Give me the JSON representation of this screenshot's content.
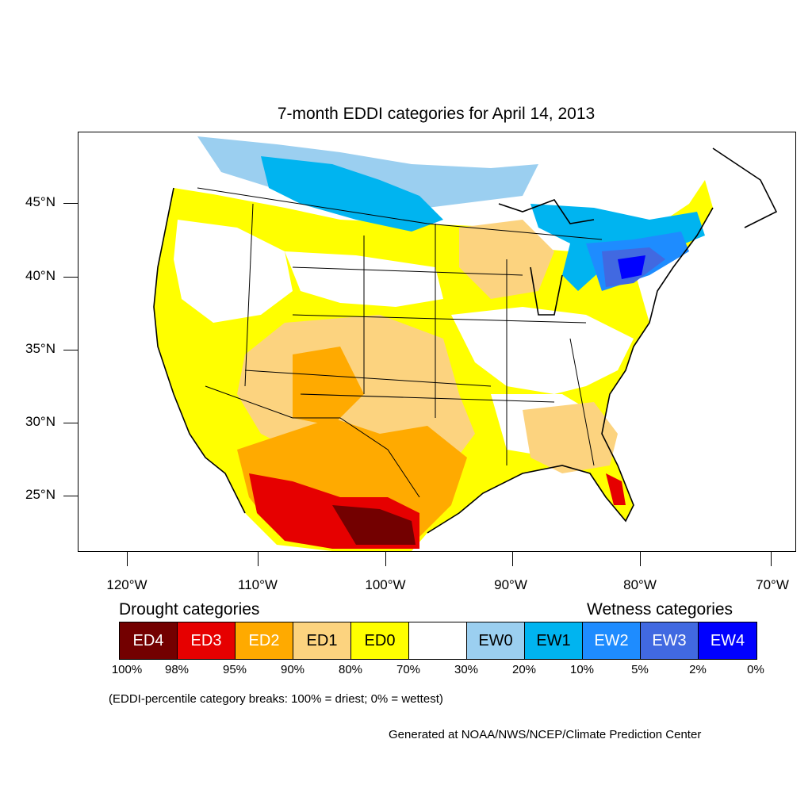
{
  "title": "7-month EDDI categories for April 14, 2013",
  "map": {
    "lat_labels": [
      "45°N",
      "40°N",
      "35°N",
      "30°N",
      "25°N"
    ],
    "lon_labels": [
      "120°W",
      "110°W",
      "100°W",
      "90°W",
      "80°W",
      "70°W"
    ],
    "colors": {
      "ED4": "#730000",
      "ED3": "#e60000",
      "ED2": "#ffaa00",
      "ED1": "#fcd37f",
      "ED0": "#ffff00",
      "neutral": "#ffffff",
      "EW0": "#9bcff0",
      "EW1": "#00b4f0",
      "EW2": "#1e8cff",
      "EW3": "#4169e1",
      "EW4": "#0000ff"
    }
  },
  "legend": {
    "drought_heading": "Drought categories",
    "wetness_heading": "Wetness categories",
    "categories": [
      {
        "label": "ED4",
        "color": "#730000",
        "text_color": "#ffffff"
      },
      {
        "label": "ED3",
        "color": "#e60000",
        "text_color": "#ffffff"
      },
      {
        "label": "ED2",
        "color": "#ffaa00",
        "text_color": "#ffffff"
      },
      {
        "label": "ED1",
        "color": "#fcd37f",
        "text_color": "#000000"
      },
      {
        "label": "ED0",
        "color": "#ffff00",
        "text_color": "#000000"
      },
      {
        "label": "",
        "color": "#ffffff",
        "text_color": "#000000"
      },
      {
        "label": "EW0",
        "color": "#9bcff0",
        "text_color": "#000000"
      },
      {
        "label": "EW1",
        "color": "#00b4f0",
        "text_color": "#000000"
      },
      {
        "label": "EW2",
        "color": "#1e8cff",
        "text_color": "#ffffff"
      },
      {
        "label": "EW3",
        "color": "#4169e1",
        "text_color": "#ffffff"
      },
      {
        "label": "EW4",
        "color": "#0000ff",
        "text_color": "#ffffff"
      }
    ],
    "percent_breaks": [
      "100%",
      "98%",
      "95%",
      "90%",
      "80%",
      "70%",
      "30%",
      "20%",
      "10%",
      "5%",
      "2%",
      "0%"
    ]
  },
  "note": "(EDDI-percentile category breaks: 100% = driest; 0% = wettest)",
  "credit": "Generated at NOAA/NWS/NCEP/Climate Prediction Center"
}
